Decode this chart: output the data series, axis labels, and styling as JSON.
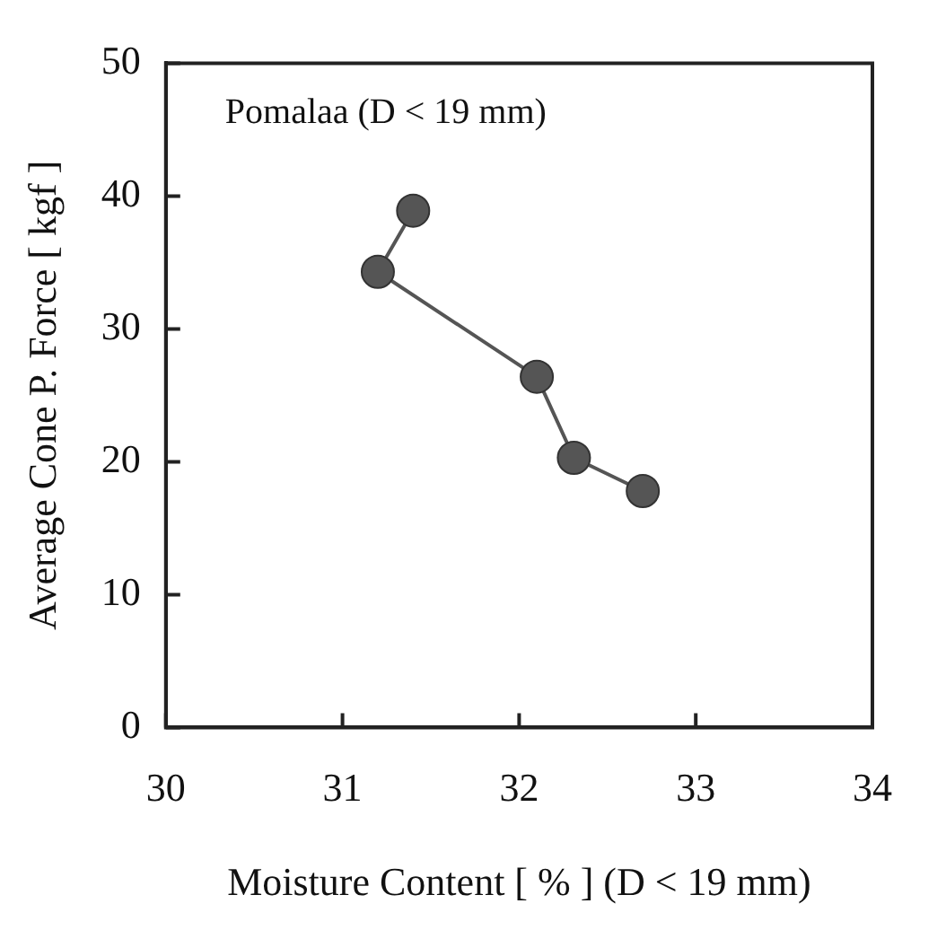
{
  "chart_data": {
    "type": "line",
    "xlabel": "Moisture Content [ % ] (D < 19 mm)",
    "ylabel": "Average Cone P. Force [ kgf ]",
    "annotations": [
      "Pomalaa (D < 19 mm)"
    ],
    "x": [
      31.4,
      31.2,
      32.1,
      32.31,
      32.7
    ],
    "series": [
      {
        "color": "#555555",
        "values": [
          38.9,
          34.3,
          26.4,
          20.3,
          17.8
        ]
      }
    ],
    "xlim": [
      30,
      34
    ],
    "xticks": [
      30,
      31,
      32,
      33,
      34
    ],
    "ylim": [
      0,
      50
    ],
    "yticks": [
      0,
      10,
      20,
      30,
      40,
      50
    ],
    "grid": false,
    "legend": false,
    "marker": "circle",
    "line_style": "solid"
  }
}
